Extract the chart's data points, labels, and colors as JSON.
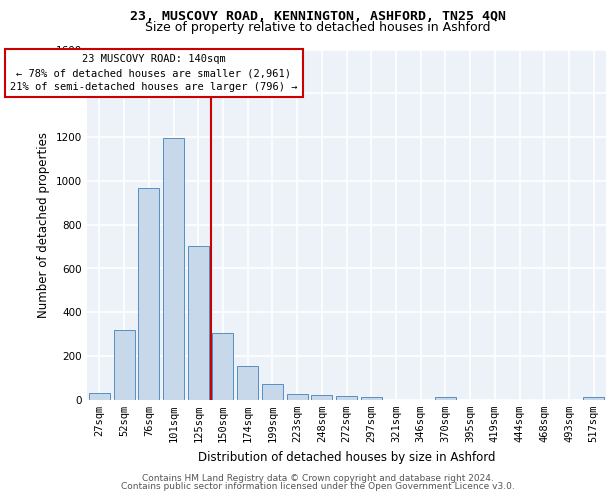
{
  "title1": "23, MUSCOVY ROAD, KENNINGTON, ASHFORD, TN25 4QN",
  "title2": "Size of property relative to detached houses in Ashford",
  "xlabel": "Distribution of detached houses by size in Ashford",
  "ylabel": "Number of detached properties",
  "footer1": "Contains HM Land Registry data © Crown copyright and database right 2024.",
  "footer2": "Contains public sector information licensed under the Open Government Licence v3.0.",
  "annotation_line1": "23 MUSCOVY ROAD: 140sqm",
  "annotation_line2": "← 78% of detached houses are smaller (2,961)",
  "annotation_line3": "21% of semi-detached houses are larger (796) →",
  "bar_color": "#c8d8eb",
  "bar_edge_color": "#5590c0",
  "vline_color": "#cc0000",
  "categories": [
    "27sqm",
    "52sqm",
    "76sqm",
    "101sqm",
    "125sqm",
    "150sqm",
    "174sqm",
    "199sqm",
    "223sqm",
    "248sqm",
    "272sqm",
    "297sqm",
    "321sqm",
    "346sqm",
    "370sqm",
    "395sqm",
    "419sqm",
    "444sqm",
    "468sqm",
    "493sqm",
    "517sqm"
  ],
  "values": [
    30,
    320,
    965,
    1195,
    700,
    305,
    155,
    70,
    27,
    20,
    15,
    13,
    0,
    0,
    10,
    0,
    0,
    0,
    0,
    0,
    13
  ],
  "ylim_max": 1600,
  "yticks": [
    0,
    200,
    400,
    600,
    800,
    1000,
    1200,
    1400,
    1600
  ],
  "vline_x": 4.5,
  "bg_color": "#edf1f8",
  "grid_color": "#ffffff",
  "title1_fontsize": 9.5,
  "title2_fontsize": 9.0,
  "axis_label_fontsize": 8.5,
  "tick_fontsize": 7.5,
  "annotation_fontsize": 7.5,
  "footer_fontsize": 6.5
}
